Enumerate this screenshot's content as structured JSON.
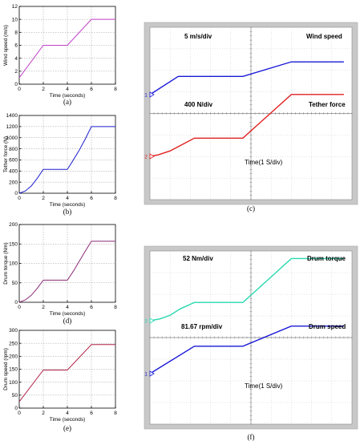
{
  "chart_data": [
    {
      "id": "a",
      "type": "line",
      "caption": "(a)",
      "xlabel": "Time (seconds)",
      "ylabel": "Wind speed (m/s)",
      "xlim": [
        0,
        8
      ],
      "ylim": [
        0,
        12
      ],
      "xticks": [
        "0",
        "2",
        "4",
        "6",
        "8"
      ],
      "yticks": [
        "0",
        "2",
        "4",
        "6",
        "8",
        "10",
        "12"
      ],
      "color": "#c040c8",
      "grid": true,
      "x": [
        0,
        2,
        4,
        6,
        8
      ],
      "y": [
        1,
        6,
        6,
        10,
        10
      ]
    },
    {
      "id": "b",
      "type": "line",
      "caption": "(b)",
      "xlabel": "Time (seconds)",
      "ylabel": "Tether force (N)",
      "xlim": [
        0,
        8
      ],
      "ylim": [
        0,
        1400
      ],
      "xticks": [
        "0",
        "2",
        "4",
        "6",
        "8"
      ],
      "yticks": [
        "0",
        "200",
        "400",
        "600",
        "800",
        "1000",
        "1200",
        "1400"
      ],
      "color": "#1f1fd0",
      "grid": true,
      "x": [
        0,
        0.5,
        1,
        1.5,
        2,
        4,
        4.5,
        5,
        5.5,
        6,
        8
      ],
      "y": [
        0,
        40,
        130,
        270,
        430,
        430,
        600,
        780,
        980,
        1200,
        1200
      ]
    },
    {
      "id": "d",
      "type": "line",
      "caption": "(d)",
      "xlabel": "Time (seconds)",
      "ylabel": "Drum torque (Nm)",
      "xlim": [
        0,
        8
      ],
      "ylim": [
        0,
        200
      ],
      "xticks": [
        "0",
        "2",
        "4",
        "6",
        "8"
      ],
      "yticks": [
        "0",
        "50",
        "100",
        "150",
        "200"
      ],
      "color": "#8a2a78",
      "grid": true,
      "x": [
        0,
        0.5,
        1,
        1.5,
        2,
        4,
        4.5,
        5,
        5.5,
        6,
        8
      ],
      "y": [
        0,
        6,
        18,
        36,
        57,
        57,
        80,
        106,
        132,
        157,
        157
      ]
    },
    {
      "id": "e",
      "type": "line",
      "caption": "(e)",
      "xlabel": "Time (seconds)",
      "ylabel": "Drum speed (rpm)",
      "xlim": [
        0,
        8
      ],
      "ylim": [
        0,
        300
      ],
      "xticks": [
        "0",
        "2",
        "4",
        "6",
        "8"
      ],
      "yticks": [
        "0",
        "50",
        "100",
        "150",
        "200",
        "250",
        "300"
      ],
      "color": "#b02448",
      "grid": true,
      "x": [
        0,
        2,
        4,
        6,
        8
      ],
      "y": [
        25,
        147,
        147,
        245,
        245
      ]
    },
    {
      "id": "c",
      "type": "line",
      "caption": "(c)",
      "time_label": "Time(1 S/div)",
      "channels": [
        {
          "name": "Wind speed",
          "scale": "5 m/s/div",
          "marker": "1",
          "color": "#1a1ad8",
          "x": [
            0,
            1.4,
            4.6,
            7.0,
            9.6
          ],
          "y": [
            0,
            1.0,
            1.0,
            1.8,
            1.8
          ]
        },
        {
          "name": "Tether force",
          "scale": "400 N/div",
          "marker": "2",
          "color": "#e02020",
          "x": [
            0,
            0.4,
            1.0,
            1.6,
            2.2,
            4.6,
            5.4,
            6.2,
            7.0,
            9.6
          ],
          "y": [
            0,
            0.08,
            0.3,
            0.65,
            1.0,
            1.0,
            1.8,
            2.6,
            3.4,
            3.4
          ]
        }
      ]
    },
    {
      "id": "f",
      "type": "line",
      "caption": "(f)",
      "time_label": "Time(1 S/div)",
      "channels": [
        {
          "name": "Drum torque",
          "scale": "52 Nm/div",
          "marker": "3",
          "color": "#28d8b0",
          "x": [
            0,
            0.5,
            1.0,
            1.5,
            2.2,
            4.6,
            5.4,
            6.2,
            7.0,
            9.6
          ],
          "y": [
            0,
            0.1,
            0.3,
            0.65,
            1.0,
            1.0,
            1.8,
            2.6,
            3.4,
            3.4
          ]
        },
        {
          "name": "Drum speed",
          "scale": "81.67 rpm/div",
          "marker": "1",
          "color": "#1a1ad8",
          "x": [
            0,
            2.2,
            4.6,
            7.0,
            9.6
          ],
          "y": [
            0,
            1.5,
            1.5,
            2.6,
            2.6
          ]
        }
      ]
    }
  ]
}
